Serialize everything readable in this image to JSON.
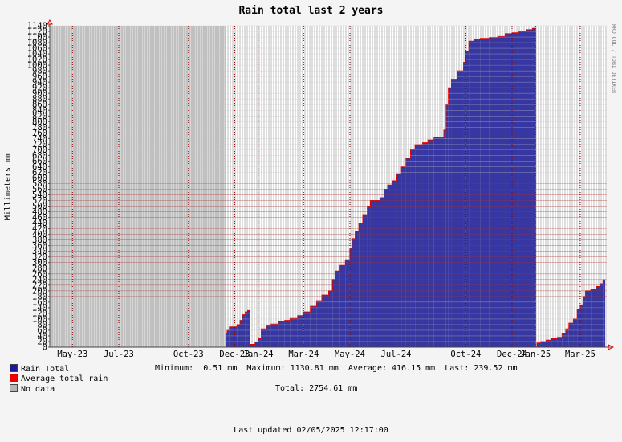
{
  "chart_data": {
    "type": "bar",
    "title": "Rain total last 2 years",
    "ylabel": "Millimeters    mm",
    "credit": "RRDTOOL / TOBI OETIKER",
    "ylim": [
      0,
      1140
    ],
    "ytick_step": 20,
    "x_range": [
      "2023-04-01",
      "2025-04-05"
    ],
    "x_tick_labels": [
      {
        "date": "2023-05-01",
        "label": "May-23"
      },
      {
        "date": "2023-07-01",
        "label": "Jul-23"
      },
      {
        "date": "2023-10-01",
        "label": "Oct-23"
      },
      {
        "date": "2023-12-01",
        "label": "Dec-23"
      },
      {
        "date": "2024-01-01",
        "label": "Jan-24"
      },
      {
        "date": "2024-03-01",
        "label": "Mar-24"
      },
      {
        "date": "2024-05-01",
        "label": "May-24"
      },
      {
        "date": "2024-07-01",
        "label": "Jul-24"
      },
      {
        "date": "2024-10-01",
        "label": "Oct-24"
      },
      {
        "date": "2024-12-01",
        "label": "Dec-24"
      },
      {
        "date": "2025-01-01",
        "label": "Jan-25"
      },
      {
        "date": "2025-03-01",
        "label": "Mar-25"
      }
    ],
    "no_data_range": [
      "2023-04-01",
      "2023-11-20"
    ],
    "average_line": 416.15,
    "series": [
      {
        "name": "Rain Total",
        "color": "#1a1a9a",
        "points": [
          {
            "date": "2023-11-20",
            "value": 50
          },
          {
            "date": "2023-11-21",
            "value": 60
          },
          {
            "date": "2023-11-24",
            "value": 72
          },
          {
            "date": "2023-12-04",
            "value": 80
          },
          {
            "date": "2023-12-08",
            "value": 95
          },
          {
            "date": "2023-12-11",
            "value": 115
          },
          {
            "date": "2023-12-15",
            "value": 125
          },
          {
            "date": "2023-12-18",
            "value": 130
          },
          {
            "date": "2023-12-21",
            "value": 10
          },
          {
            "date": "2023-12-28",
            "value": 18
          },
          {
            "date": "2024-01-01",
            "value": 30
          },
          {
            "date": "2024-01-05",
            "value": 65
          },
          {
            "date": "2024-01-12",
            "value": 75
          },
          {
            "date": "2024-01-18",
            "value": 82
          },
          {
            "date": "2024-01-28",
            "value": 90
          },
          {
            "date": "2024-02-05",
            "value": 95
          },
          {
            "date": "2024-02-12",
            "value": 102
          },
          {
            "date": "2024-02-22",
            "value": 112
          },
          {
            "date": "2024-03-01",
            "value": 125
          },
          {
            "date": "2024-03-10",
            "value": 145
          },
          {
            "date": "2024-03-18",
            "value": 165
          },
          {
            "date": "2024-03-25",
            "value": 185
          },
          {
            "date": "2024-04-03",
            "value": 200
          },
          {
            "date": "2024-04-08",
            "value": 240
          },
          {
            "date": "2024-04-12",
            "value": 270
          },
          {
            "date": "2024-04-18",
            "value": 290
          },
          {
            "date": "2024-04-25",
            "value": 310
          },
          {
            "date": "2024-05-01",
            "value": 350
          },
          {
            "date": "2024-05-04",
            "value": 385
          },
          {
            "date": "2024-05-08",
            "value": 410
          },
          {
            "date": "2024-05-13",
            "value": 440
          },
          {
            "date": "2024-05-18",
            "value": 470
          },
          {
            "date": "2024-05-24",
            "value": 500
          },
          {
            "date": "2024-05-28",
            "value": 520
          },
          {
            "date": "2024-06-10",
            "value": 530
          },
          {
            "date": "2024-06-15",
            "value": 560
          },
          {
            "date": "2024-06-20",
            "value": 575
          },
          {
            "date": "2024-06-26",
            "value": 590
          },
          {
            "date": "2024-07-02",
            "value": 615
          },
          {
            "date": "2024-07-08",
            "value": 640
          },
          {
            "date": "2024-07-14",
            "value": 670
          },
          {
            "date": "2024-07-20",
            "value": 700
          },
          {
            "date": "2024-07-26",
            "value": 718
          },
          {
            "date": "2024-08-05",
            "value": 725
          },
          {
            "date": "2024-08-12",
            "value": 735
          },
          {
            "date": "2024-08-20",
            "value": 745
          },
          {
            "date": "2024-09-02",
            "value": 770
          },
          {
            "date": "2024-09-05",
            "value": 860
          },
          {
            "date": "2024-09-08",
            "value": 920
          },
          {
            "date": "2024-09-12",
            "value": 950
          },
          {
            "date": "2024-09-20",
            "value": 980
          },
          {
            "date": "2024-09-28",
            "value": 1010
          },
          {
            "date": "2024-10-01",
            "value": 1050
          },
          {
            "date": "2024-10-05",
            "value": 1085
          },
          {
            "date": "2024-10-12",
            "value": 1090
          },
          {
            "date": "2024-10-20",
            "value": 1095
          },
          {
            "date": "2024-11-01",
            "value": 1098
          },
          {
            "date": "2024-11-12",
            "value": 1102
          },
          {
            "date": "2024-11-22",
            "value": 1112
          },
          {
            "date": "2024-12-01",
            "value": 1115
          },
          {
            "date": "2024-12-10",
            "value": 1120
          },
          {
            "date": "2024-12-20",
            "value": 1126
          },
          {
            "date": "2024-12-28",
            "value": 1130.81
          },
          {
            "date": "2025-01-01",
            "value": 0.51
          },
          {
            "date": "2025-01-03",
            "value": 15
          },
          {
            "date": "2025-01-08",
            "value": 20
          },
          {
            "date": "2025-01-15",
            "value": 25
          },
          {
            "date": "2025-01-22",
            "value": 30
          },
          {
            "date": "2025-01-30",
            "value": 35
          },
          {
            "date": "2025-02-05",
            "value": 50
          },
          {
            "date": "2025-02-10",
            "value": 65
          },
          {
            "date": "2025-02-14",
            "value": 85
          },
          {
            "date": "2025-02-20",
            "value": 100
          },
          {
            "date": "2025-02-25",
            "value": 135
          },
          {
            "date": "2025-03-01",
            "value": 150
          },
          {
            "date": "2025-03-05",
            "value": 180
          },
          {
            "date": "2025-03-08",
            "value": 200
          },
          {
            "date": "2025-03-15",
            "value": 205
          },
          {
            "date": "2025-03-22",
            "value": 215
          },
          {
            "date": "2025-03-27",
            "value": 225
          },
          {
            "date": "2025-03-31",
            "value": 239.52
          }
        ]
      }
    ]
  },
  "legend": {
    "rain_total": {
      "label": "Rain Total",
      "color": "#1a1a9a"
    },
    "average": {
      "label": "Average total rain",
      "color": "#ee0000"
    },
    "no_data": {
      "label": "No data",
      "color": "#b4b4b4"
    }
  },
  "stats": {
    "line1": "Minimum:  0.51 mm  Maximum: 1130.81 mm  Average: 416.15 mm  Last: 239.52 mm",
    "total": "Total: 2754.61 mm"
  },
  "footer": {
    "last_updated": "Last updated 02/05/2025 12:17:00"
  }
}
